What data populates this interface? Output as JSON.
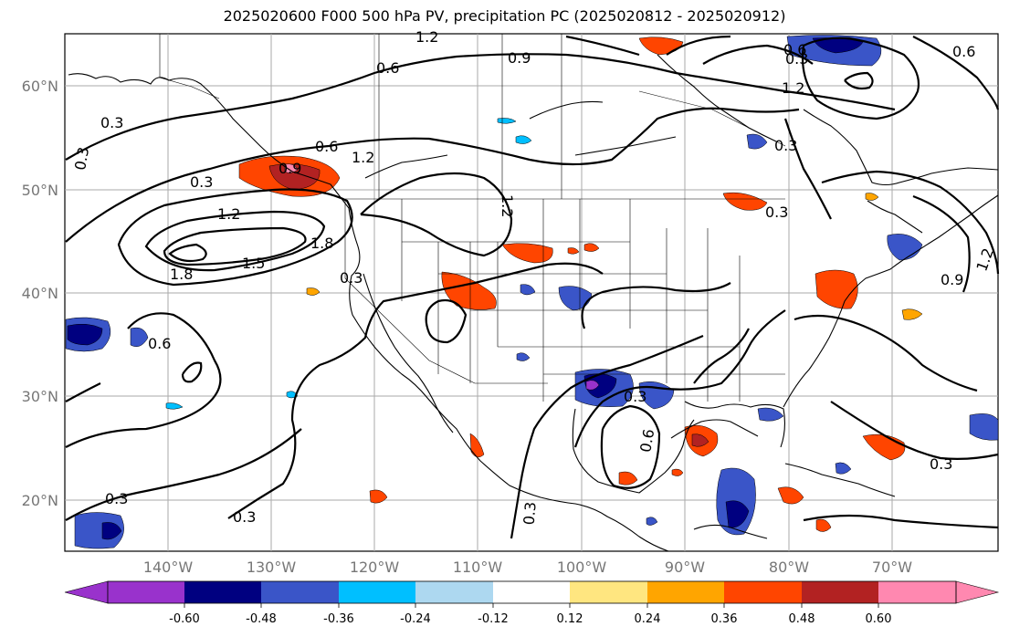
{
  "title": "2025020600 F000 500 hPa PV, precipitation PC (2025020812 - 2025020912)",
  "lat_labels": [
    "60°N",
    "50°N",
    "40°N",
    "30°N",
    "20°N"
  ],
  "lon_labels": [
    "140°W",
    "130°W",
    "120°W",
    "110°W",
    "100°W",
    "90°W",
    "80°W",
    "70°W"
  ],
  "colorbar": {
    "ticks": [
      "-0.60",
      "-0.48",
      "-0.36",
      "-0.24",
      "-0.12",
      "0.12",
      "0.24",
      "0.36",
      "0.48",
      "0.60"
    ],
    "colors": [
      "#9932cc",
      "#000080",
      "#3a55c8",
      "#00bfff",
      "#add8f0",
      "#ffffff",
      "#ffe680",
      "#ffa500",
      "#ff4500",
      "#b22222",
      "#ff88b0"
    ]
  },
  "contour_labels": [
    "1.2",
    "0.6",
    "0.9",
    "0.6",
    "0.3",
    "0.3",
    "0.6",
    "1.2",
    "0.9",
    "1.2",
    "0.3",
    "0.3",
    "1.2",
    "1.5",
    "1.8",
    "1.8",
    "1.2",
    "0.3",
    "0.3",
    "0.6",
    "0.3",
    "0.9",
    "1.2",
    "0.6",
    "0.3",
    "0.3",
    "0.3",
    "0.3",
    "0.6",
    "0.3"
  ]
}
